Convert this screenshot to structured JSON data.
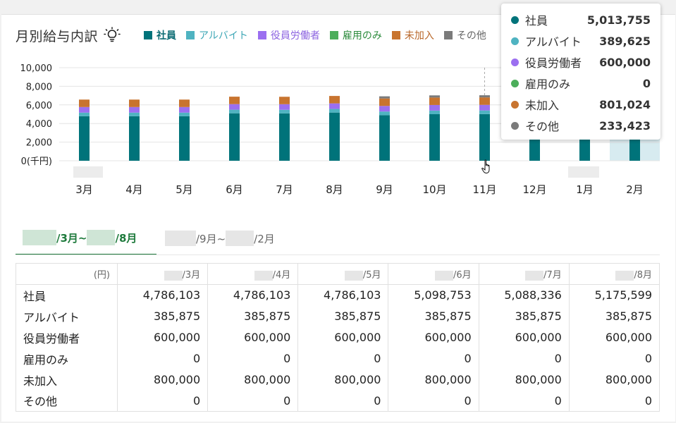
{
  "title": "月別給与内訳",
  "legend": [
    {
      "label": "社員",
      "color": "#00737a",
      "text_color": "#0b6b73",
      "bold": true
    },
    {
      "label": "アルバイト",
      "color": "#4fb3c1",
      "text_color": "#3ea7b6",
      "bold": false
    },
    {
      "label": "役員労働者",
      "color": "#9b6ff0",
      "text_color": "#8c63e0",
      "bold": false
    },
    {
      "label": "雇用のみ",
      "color": "#4cae5b",
      "text_color": "#2e8c3e",
      "bold": false
    },
    {
      "label": "未加入",
      "color": "#c8742f",
      "text_color": "#b9682b",
      "bold": false
    },
    {
      "label": "その他",
      "color": "#7b7b7b",
      "text_color": "#666666",
      "bold": false
    }
  ],
  "chart_data": {
    "type": "bar",
    "stacked": true,
    "categories": [
      "3月",
      "4月",
      "5月",
      "6月",
      "7月",
      "8月",
      "9月",
      "10月",
      "11月",
      "12月",
      "1月",
      "2月"
    ],
    "y_ticks": [
      "10,000",
      "8,000",
      "6,000",
      "4,000",
      "2,000",
      "0(千円)"
    ],
    "ylim": [
      0,
      10000
    ],
    "grid": true,
    "legend_position": "top",
    "series": [
      {
        "name": "社員",
        "color": "#00737a",
        "values": [
          4786,
          4786,
          4786,
          5099,
          5088,
          5176,
          4900,
          5000,
          5014,
          5014,
          5014,
          5014
        ]
      },
      {
        "name": "アルバイト",
        "color": "#4fb3c1",
        "values": [
          386,
          386,
          386,
          386,
          386,
          386,
          390,
          390,
          390,
          390,
          390,
          390
        ]
      },
      {
        "name": "役員労働者",
        "color": "#9b6ff0",
        "values": [
          600,
          600,
          600,
          600,
          600,
          600,
          600,
          600,
          600,
          600,
          600,
          600
        ]
      },
      {
        "name": "雇用のみ",
        "color": "#4cae5b",
        "values": [
          0,
          0,
          0,
          0,
          0,
          0,
          0,
          0,
          0,
          0,
          0,
          0
        ]
      },
      {
        "name": "未加入",
        "color": "#c8742f",
        "values": [
          800,
          800,
          800,
          800,
          800,
          800,
          800,
          801,
          801,
          801,
          801,
          801
        ]
      },
      {
        "name": "その他",
        "color": "#7b7b7b",
        "values": [
          0,
          0,
          0,
          0,
          0,
          0,
          233,
          233,
          233,
          233,
          233,
          233
        ]
      }
    ],
    "hover_category": "11月",
    "highlight_category": "2月"
  },
  "tooltip": {
    "rows": [
      {
        "label": "社員",
        "value": "5,013,755",
        "color": "#00737a"
      },
      {
        "label": "アルバイト",
        "value": "389,625",
        "color": "#4fb3c1"
      },
      {
        "label": "役員労働者",
        "value": "600,000",
        "color": "#9b6ff0"
      },
      {
        "label": "雇用のみ",
        "value": "0",
        "color": "#4cae5b"
      },
      {
        "label": "未加入",
        "value": "801,024",
        "color": "#c8742f"
      },
      {
        "label": "その他",
        "value": "233,423",
        "color": "#7b7b7b"
      }
    ]
  },
  "tabs": {
    "active": {
      "label_a": "/3月~",
      "label_b": "/8月"
    },
    "inactive": {
      "label_a": "/9月~",
      "label_b": "/2月"
    }
  },
  "table": {
    "unit_header": "(円)",
    "columns": [
      "/3月",
      "/4月",
      "/5月",
      "/6月",
      "/7月",
      "/8月"
    ],
    "rows": [
      {
        "label": "社員",
        "values": [
          "4,786,103",
          "4,786,103",
          "4,786,103",
          "5,098,753",
          "5,088,336",
          "5,175,599"
        ]
      },
      {
        "label": "アルバイト",
        "values": [
          "385,875",
          "385,875",
          "385,875",
          "385,875",
          "385,875",
          "385,875"
        ]
      },
      {
        "label": "役員労働者",
        "values": [
          "600,000",
          "600,000",
          "600,000",
          "600,000",
          "600,000",
          "600,000"
        ]
      },
      {
        "label": "雇用のみ",
        "values": [
          "0",
          "0",
          "0",
          "0",
          "0",
          "0"
        ]
      },
      {
        "label": "未加入",
        "values": [
          "800,000",
          "800,000",
          "800,000",
          "800,000",
          "800,000",
          "800,000"
        ]
      },
      {
        "label": "その他",
        "values": [
          "0",
          "0",
          "0",
          "0",
          "0",
          "0"
        ]
      }
    ]
  }
}
